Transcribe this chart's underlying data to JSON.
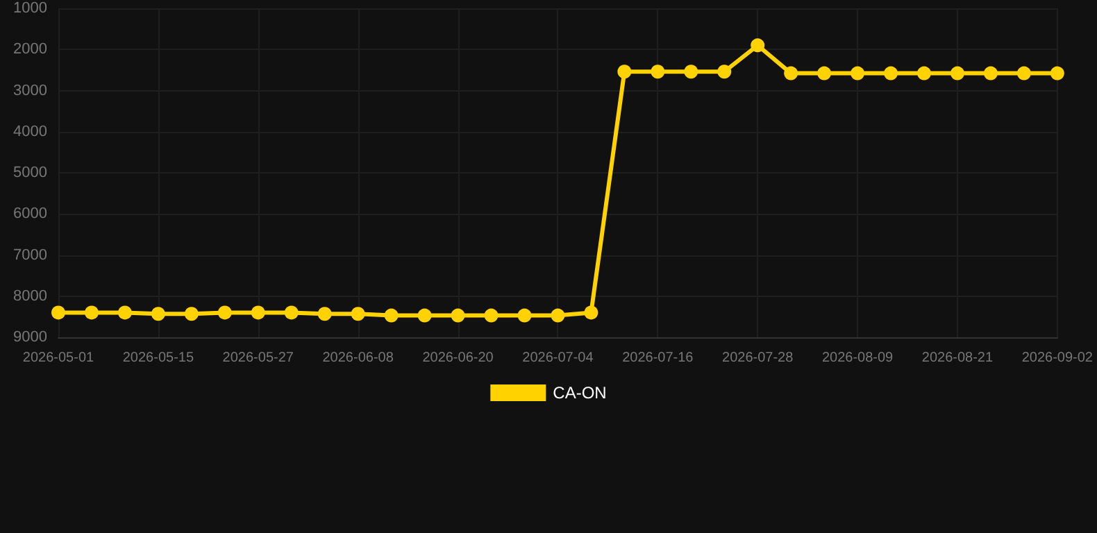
{
  "chart_data": {
    "type": "line",
    "categories": [
      "2026-05-01",
      null,
      null,
      "2026-05-15",
      null,
      null,
      "2026-05-27",
      null,
      null,
      "2026-06-08",
      null,
      null,
      "2026-06-20",
      null,
      null,
      "2026-07-04",
      null,
      null,
      "2026-07-16",
      null,
      null,
      "2026-07-28",
      null,
      null,
      "2026-08-09",
      null,
      null,
      "2026-08-21",
      null,
      null,
      "2026-09-02"
    ],
    "series": [
      {
        "name": "CA-ON",
        "color": "#ffd200",
        "values": [
          8400,
          8400,
          8400,
          8430,
          8430,
          8400,
          8400,
          8400,
          8430,
          8430,
          8470,
          8470,
          8470,
          8470,
          8470,
          8470,
          8400,
          2540,
          2540,
          2540,
          2540,
          1900,
          2580,
          2580,
          2580,
          2580,
          2580,
          2580,
          2580,
          2580,
          2580
        ]
      }
    ],
    "ylim": [
      9000,
      1000
    ],
    "yticks": [
      1000,
      2000,
      3000,
      4000,
      5000,
      6000,
      7000,
      8000,
      9000
    ],
    "grid": true,
    "legend": "bottom",
    "marker": "circle",
    "line_style": "solid"
  }
}
